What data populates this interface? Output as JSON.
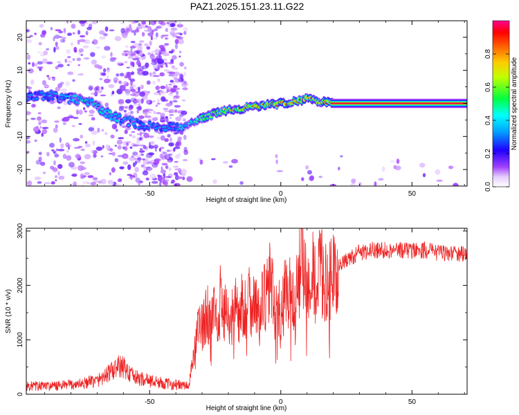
{
  "title": "PAZ1.2025.151.23.11.G22",
  "chart_data": [
    {
      "type": "heatmap",
      "xlabel": "Height of straight line (km)",
      "ylabel": "Frequency (Hz)",
      "xlim": [
        -97,
        71
      ],
      "ylim": [
        -25,
        25
      ],
      "xticks": [
        -50,
        0,
        50
      ],
      "yticks": [
        -20,
        -10,
        0,
        10,
        20
      ],
      "grid": false,
      "colorbar": {
        "label": "Normalized spectral amplitude",
        "range": [
          0,
          1
        ],
        "ticks": [
          0.0,
          0.2,
          0.4,
          0.6,
          0.8
        ],
        "colors": [
          "#ffffff",
          "#cc99ff",
          "#9933ff",
          "#0000ff",
          "#00ffff",
          "#00ff00",
          "#ffff00",
          "#ff8800",
          "#ff0000",
          "#ff00aa"
        ]
      },
      "ridge": {
        "x": [
          -95,
          -90,
          -85,
          -80,
          -75,
          -70,
          -65,
          -60,
          -55,
          -50,
          -45,
          -40,
          -35,
          -30,
          -25,
          -20,
          -15,
          -10,
          -5,
          0,
          5,
          8,
          10,
          15,
          20,
          30,
          40,
          50,
          60,
          71
        ],
        "y": [
          2,
          2.5,
          2,
          1.5,
          1,
          -1,
          -3.5,
          -5,
          -6,
          -7,
          -7.5,
          -7,
          -6,
          -4.5,
          -3,
          -2,
          -1.5,
          -1,
          -0.5,
          0,
          0.5,
          1,
          1.5,
          0.5,
          0,
          0,
          0,
          0,
          0,
          0
        ],
        "amplitude": [
          0.3,
          0.35,
          0.35,
          0.4,
          0.45,
          0.45,
          0.45,
          0.4,
          0.35,
          0.35,
          0.35,
          0.35,
          0.45,
          0.6,
          0.65,
          0.7,
          0.75,
          0.8,
          0.8,
          0.85,
          0.85,
          0.85,
          0.8,
          0.7,
          0.95,
          1,
          1,
          1,
          1,
          1
        ]
      }
    },
    {
      "type": "line",
      "xlabel": "Height of straight line (km)",
      "ylabel": "SNR (10 * v/v)",
      "xlim": [
        -97,
        71
      ],
      "ylim": [
        0,
        3050
      ],
      "xticks": [
        -50,
        0,
        50
      ],
      "yticks": [
        0,
        1000,
        2000,
        3000
      ],
      "grid": false,
      "color": "#ee2222",
      "series": [
        {
          "x": [
            -97,
            -90,
            -85,
            -80,
            -75,
            -70,
            -65,
            -62,
            -60,
            -57,
            -55,
            -50,
            -45,
            -40,
            -35,
            -33,
            -32,
            -30,
            -28,
            -26,
            -25,
            -24,
            -23,
            -22,
            -21,
            -20,
            -18,
            -17,
            -16,
            -15,
            -13,
            -12,
            -11,
            -10,
            -9,
            -8,
            -7,
            -6,
            -5,
            -4,
            -3,
            -2,
            -1,
            0,
            1,
            2,
            3,
            4,
            5,
            6,
            7,
            8,
            9,
            10,
            11,
            12,
            13,
            14,
            15,
            16,
            17,
            18,
            19,
            20,
            22,
            25,
            28,
            30,
            35,
            40,
            45,
            50,
            55,
            60,
            65,
            71
          ],
          "y": [
            150,
            150,
            150,
            175,
            200,
            250,
            400,
            500,
            500,
            350,
            300,
            250,
            200,
            175,
            150,
            800,
            1300,
            1200,
            1500,
            1300,
            1600,
            900,
            1900,
            1400,
            1700,
            1300,
            1500,
            1800,
            1250,
            1700,
            1500,
            1900,
            1600,
            1700,
            1550,
            1350,
            1700,
            1750,
            2000,
            2100,
            1850,
            1500,
            1650,
            1400,
            1800,
            1950,
            1900,
            1750,
            1650,
            1950,
            2300,
            2700,
            2300,
            1900,
            2100,
            2250,
            2000,
            2250,
            2300,
            2150,
            2050,
            2200,
            2100,
            2300,
            2350,
            2450,
            2550,
            2600,
            2650,
            2650,
            2650,
            2650,
            2650,
            2600,
            2600,
            2550
          ]
        }
      ]
    }
  ]
}
